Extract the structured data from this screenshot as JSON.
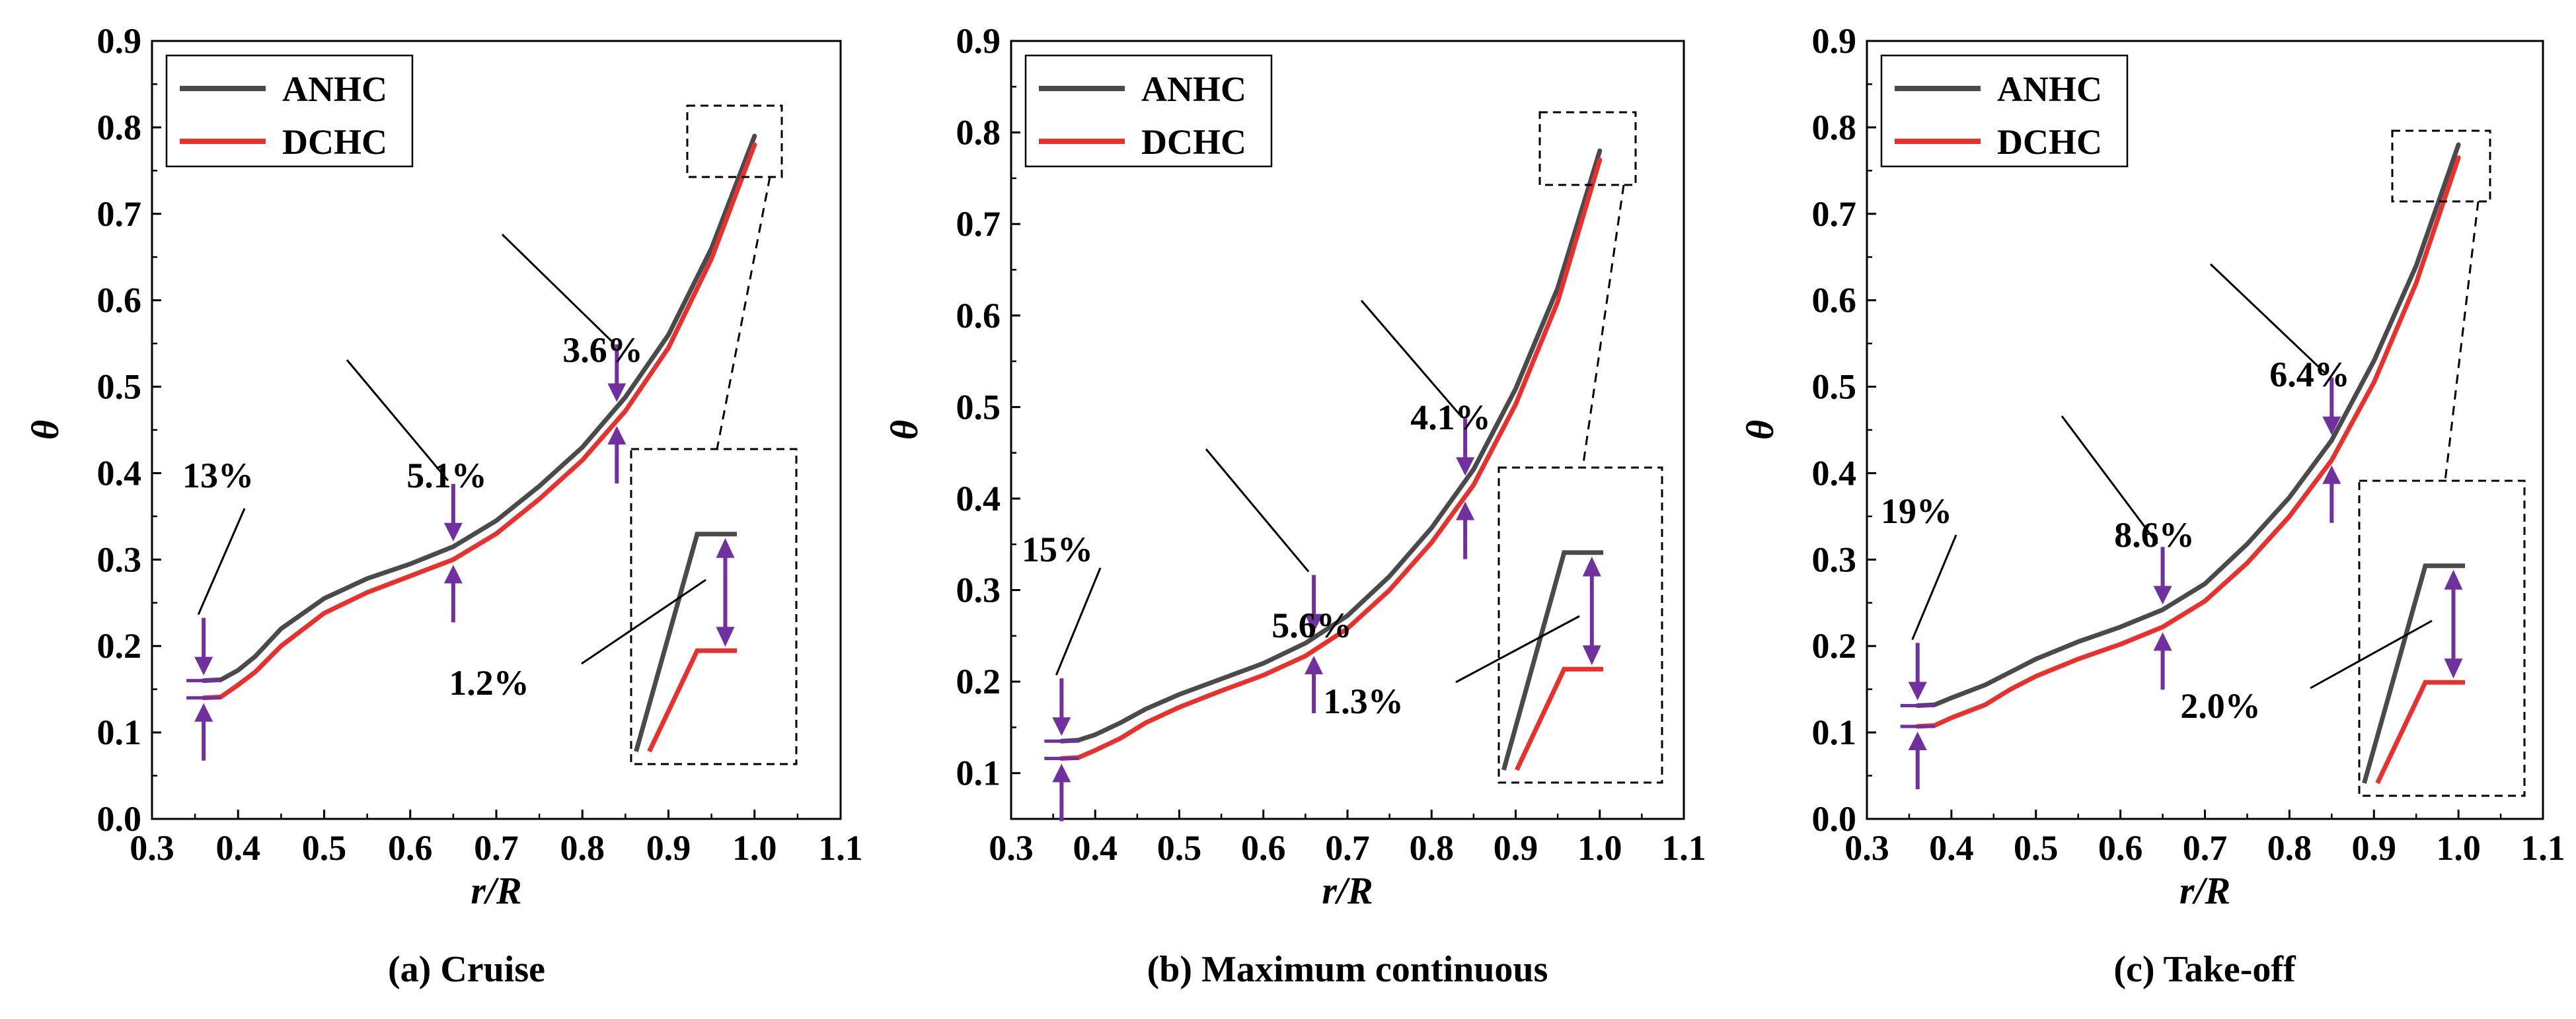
{
  "colors": {
    "anhc": "#4a4a4a",
    "dchc": "#e8302c",
    "arrow": "#7030a0",
    "axis": "#000000"
  },
  "chart_data": [
    {
      "type": "line",
      "caption": "(a) Cruise",
      "xlabel": "r/R",
      "ylabel": "θ",
      "xlim": [
        0.3,
        1.1
      ],
      "ylim": [
        0.0,
        0.9
      ],
      "xticks": [
        0.3,
        0.4,
        0.5,
        0.6,
        0.7,
        0.8,
        0.9,
        1.0,
        1.1
      ],
      "yticks": [
        0.0,
        0.1,
        0.2,
        0.3,
        0.4,
        0.5,
        0.6,
        0.7,
        0.8,
        0.9
      ],
      "grid": false,
      "legend": "top-left",
      "series": [
        {
          "name": "ANHC",
          "x": [
            0.36,
            0.38,
            0.4,
            0.42,
            0.45,
            0.5,
            0.55,
            0.6,
            0.65,
            0.7,
            0.75,
            0.8,
            0.85,
            0.9,
            0.95,
            1.0
          ],
          "y": [
            0.16,
            0.161,
            0.172,
            0.188,
            0.22,
            0.255,
            0.278,
            0.295,
            0.315,
            0.345,
            0.385,
            0.43,
            0.488,
            0.56,
            0.66,
            0.79
          ]
        },
        {
          "name": "DCHC",
          "x": [
            0.36,
            0.38,
            0.4,
            0.42,
            0.45,
            0.5,
            0.55,
            0.6,
            0.65,
            0.7,
            0.75,
            0.8,
            0.85,
            0.9,
            0.95,
            1.0
          ],
          "y": [
            0.14,
            0.141,
            0.155,
            0.17,
            0.2,
            0.238,
            0.262,
            0.281,
            0.3,
            0.33,
            0.37,
            0.415,
            0.472,
            0.545,
            0.648,
            0.78
          ]
        }
      ],
      "annotations": [
        {
          "text": "13%",
          "x": 0.36
        },
        {
          "text": "5.1%",
          "x": 0.65
        },
        {
          "text": "3.6%",
          "x": 0.84
        },
        {
          "text": "1.2%",
          "x": 1.0
        }
      ]
    },
    {
      "type": "line",
      "caption": "(b) Maximum continuous",
      "xlabel": "r/R",
      "ylabel": "θ",
      "xlim": [
        0.3,
        1.1
      ],
      "ylim": [
        0.05,
        0.9
      ],
      "xticks": [
        0.3,
        0.4,
        0.5,
        0.6,
        0.7,
        0.8,
        0.9,
        1.0,
        1.1
      ],
      "yticks": [
        0.1,
        0.2,
        0.3,
        0.4,
        0.5,
        0.6,
        0.7,
        0.8,
        0.9
      ],
      "grid": false,
      "legend": "top-left",
      "series": [
        {
          "name": "ANHC",
          "x": [
            0.36,
            0.38,
            0.4,
            0.43,
            0.46,
            0.5,
            0.55,
            0.6,
            0.65,
            0.7,
            0.75,
            0.8,
            0.85,
            0.9,
            0.95,
            1.0
          ],
          "y": [
            0.135,
            0.136,
            0.142,
            0.155,
            0.17,
            0.186,
            0.203,
            0.22,
            0.242,
            0.272,
            0.315,
            0.368,
            0.432,
            0.52,
            0.63,
            0.78
          ]
        },
        {
          "name": "DCHC",
          "x": [
            0.36,
            0.38,
            0.4,
            0.43,
            0.46,
            0.5,
            0.55,
            0.6,
            0.65,
            0.7,
            0.75,
            0.8,
            0.85,
            0.9,
            0.95,
            1.0
          ],
          "y": [
            0.116,
            0.117,
            0.125,
            0.138,
            0.155,
            0.172,
            0.19,
            0.207,
            0.228,
            0.258,
            0.3,
            0.352,
            0.415,
            0.503,
            0.615,
            0.77
          ]
        }
      ],
      "annotations": [
        {
          "text": "15%",
          "x": 0.36
        },
        {
          "text": "5.6%",
          "x": 0.66
        },
        {
          "text": "4.1%",
          "x": 0.84
        },
        {
          "text": "1.3%",
          "x": 1.0
        }
      ]
    },
    {
      "type": "line",
      "caption": "(c) Take-off",
      "xlabel": "r/R",
      "ylabel": "θ",
      "xlim": [
        0.3,
        1.1
      ],
      "ylim": [
        0.0,
        0.9
      ],
      "xticks": [
        0.3,
        0.4,
        0.5,
        0.6,
        0.7,
        0.8,
        0.9,
        1.0,
        1.1
      ],
      "yticks": [
        0.0,
        0.1,
        0.2,
        0.3,
        0.4,
        0.5,
        0.6,
        0.7,
        0.8,
        0.9
      ],
      "grid": false,
      "legend": "top-left",
      "series": [
        {
          "name": "ANHC",
          "x": [
            0.36,
            0.38,
            0.4,
            0.44,
            0.47,
            0.5,
            0.55,
            0.6,
            0.65,
            0.7,
            0.75,
            0.8,
            0.85,
            0.9,
            0.95,
            1.0
          ],
          "y": [
            0.131,
            0.132,
            0.14,
            0.155,
            0.17,
            0.185,
            0.205,
            0.222,
            0.242,
            0.272,
            0.318,
            0.372,
            0.438,
            0.53,
            0.64,
            0.78
          ]
        },
        {
          "name": "DCHC",
          "x": [
            0.36,
            0.38,
            0.4,
            0.44,
            0.47,
            0.5,
            0.55,
            0.6,
            0.65,
            0.7,
            0.75,
            0.8,
            0.85,
            0.9,
            0.95,
            1.0
          ],
          "y": [
            0.107,
            0.108,
            0.117,
            0.132,
            0.15,
            0.165,
            0.185,
            0.202,
            0.222,
            0.252,
            0.296,
            0.35,
            0.415,
            0.505,
            0.62,
            0.765
          ]
        }
      ],
      "annotations": [
        {
          "text": "19%",
          "x": 0.36
        },
        {
          "text": "8.6%",
          "x": 0.65
        },
        {
          "text": "6.4%",
          "x": 0.85
        },
        {
          "text": "2.0%",
          "x": 1.0
        }
      ]
    }
  ]
}
